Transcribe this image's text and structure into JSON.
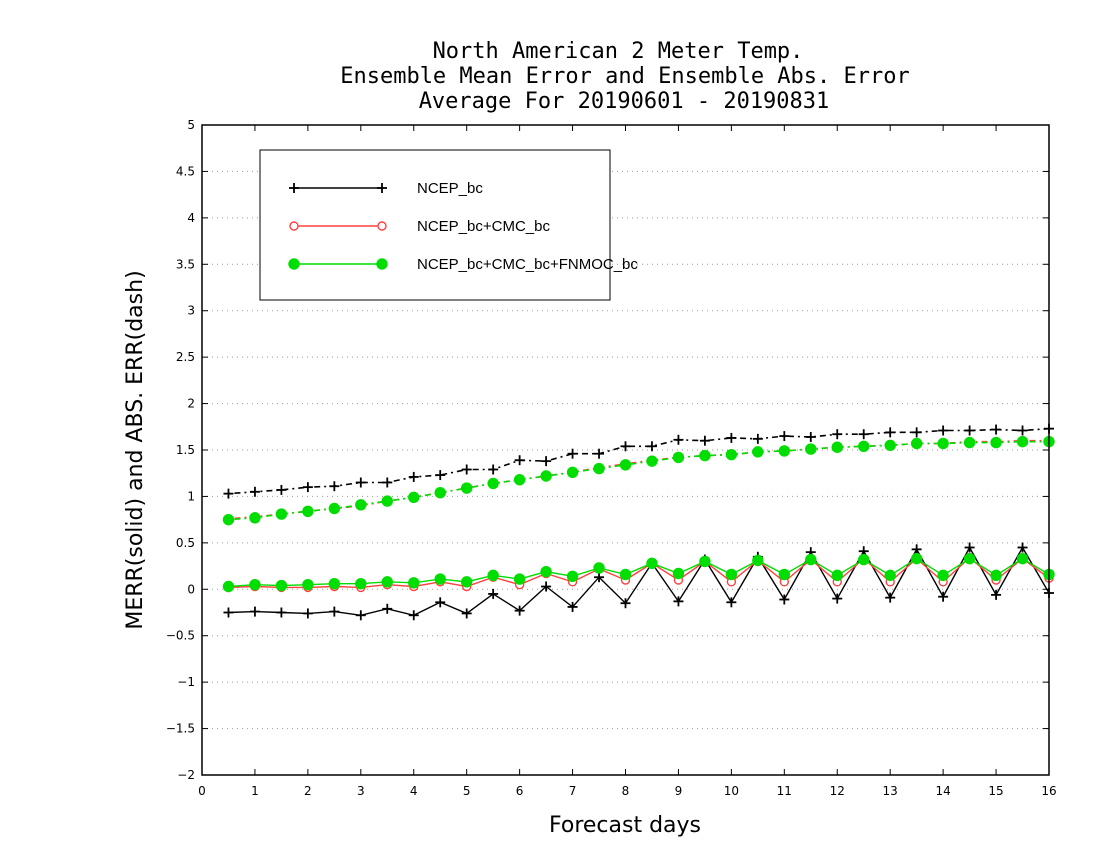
{
  "chart_data": {
    "type": "line",
    "title": [
      "North American 2 Meter Temp.",
      "Ensemble Mean Error and Ensemble Abs. Error",
      "Average For 20190601 - 20190831"
    ],
    "xlabel": "Forecast days",
    "ylabel": "MERR(solid) and ABS. ERR(dash)",
    "xlim": [
      0,
      16
    ],
    "ylim": [
      -2,
      5
    ],
    "xticks": [
      "0",
      "1",
      "2",
      "3",
      "4",
      "5",
      "6",
      "7",
      "8",
      "9",
      "10",
      "11",
      "12",
      "13",
      "14",
      "15",
      "16"
    ],
    "yticks": [
      "−2",
      "−1.5",
      "−1",
      "−0.5",
      "0",
      "0.5",
      "1",
      "1.5",
      "2",
      "2.5",
      "3",
      "3.5",
      "4",
      "4.5",
      "5"
    ],
    "grid": true,
    "legend_position": "top-left",
    "x": [
      0.5,
      1,
      1.5,
      2,
      2.5,
      3,
      3.5,
      4,
      4.5,
      5,
      5.5,
      6,
      6.5,
      7,
      7.5,
      8,
      8.5,
      9,
      9.5,
      10,
      10.5,
      11,
      11.5,
      12,
      12.5,
      13,
      13.5,
      14,
      14.5,
      15,
      15.5,
      16
    ],
    "series": [
      {
        "name": "NCEP_bc",
        "color": "#000000",
        "marker": "plus",
        "merr": [
          -0.25,
          -0.24,
          -0.25,
          -0.26,
          -0.24,
          -0.28,
          -0.21,
          -0.28,
          -0.14,
          -0.26,
          -0.05,
          -0.23,
          0.03,
          -0.19,
          0.13,
          -0.15,
          0.28,
          -0.13,
          0.32,
          -0.14,
          0.35,
          -0.11,
          0.4,
          -0.1,
          0.41,
          -0.09,
          0.43,
          -0.08,
          0.45,
          -0.06,
          0.45,
          -0.04
        ],
        "abs_err": [
          1.03,
          1.05,
          1.07,
          1.1,
          1.11,
          1.15,
          1.15,
          1.21,
          1.23,
          1.29,
          1.29,
          1.39,
          1.38,
          1.46,
          1.46,
          1.54,
          1.54,
          1.61,
          1.6,
          1.63,
          1.62,
          1.65,
          1.64,
          1.67,
          1.67,
          1.69,
          1.69,
          1.71,
          1.71,
          1.72,
          1.71,
          1.73
        ]
      },
      {
        "name": "NCEP_bc+CMC_bc",
        "color": "#ff4040",
        "marker": "open-circle",
        "merr": [
          0.02,
          0.03,
          0.02,
          0.02,
          0.03,
          0.02,
          0.05,
          0.03,
          0.08,
          0.03,
          0.13,
          0.05,
          0.17,
          0.08,
          0.22,
          0.1,
          0.28,
          0.1,
          0.3,
          0.08,
          0.31,
          0.08,
          0.32,
          0.08,
          0.33,
          0.08,
          0.33,
          0.08,
          0.34,
          0.1,
          0.33,
          0.12
        ],
        "abs_err": [
          0.76,
          0.78,
          0.81,
          0.84,
          0.87,
          0.9,
          0.95,
          0.99,
          1.04,
          1.09,
          1.14,
          1.18,
          1.22,
          1.26,
          1.31,
          1.35,
          1.39,
          1.42,
          1.44,
          1.45,
          1.48,
          1.49,
          1.51,
          1.53,
          1.54,
          1.55,
          1.57,
          1.57,
          1.59,
          1.59,
          1.6,
          1.6
        ]
      },
      {
        "name": "NCEP_bc+CMC_bc+FNMOC_bc",
        "color": "#00dd00",
        "marker": "filled-circle",
        "merr": [
          0.03,
          0.05,
          0.04,
          0.05,
          0.06,
          0.06,
          0.08,
          0.07,
          0.11,
          0.08,
          0.15,
          0.11,
          0.19,
          0.14,
          0.23,
          0.16,
          0.28,
          0.17,
          0.3,
          0.16,
          0.31,
          0.16,
          0.32,
          0.15,
          0.32,
          0.15,
          0.33,
          0.15,
          0.33,
          0.15,
          0.33,
          0.16
        ],
        "abs_err": [
          0.75,
          0.77,
          0.81,
          0.84,
          0.87,
          0.91,
          0.95,
          0.99,
          1.04,
          1.09,
          1.14,
          1.18,
          1.22,
          1.26,
          1.3,
          1.34,
          1.38,
          1.42,
          1.44,
          1.45,
          1.48,
          1.49,
          1.51,
          1.53,
          1.54,
          1.55,
          1.57,
          1.57,
          1.58,
          1.58,
          1.59,
          1.59
        ]
      }
    ]
  }
}
